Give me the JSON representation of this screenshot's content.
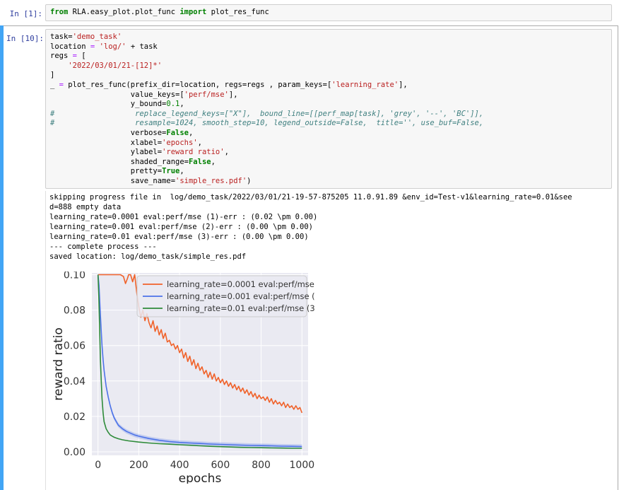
{
  "cell1": {
    "prompt": "In [1]:",
    "code": {
      "kw_from": "from",
      "module": " RLA.easy_plot.plot_func ",
      "kw_import": "import",
      "name": " plot_res_func"
    }
  },
  "cell2": {
    "prompt": "In [10]:",
    "lines": {
      "l1a": "task=",
      "l1b": "'demo_task'",
      "l2a": "location ",
      "l2b": "=",
      "l2c": "'log/'",
      "l2d": " + task",
      "l3a": "regs ",
      "l3b": "=",
      "l3c": " [",
      "l4": "'2022/03/01/21-[12]*'",
      "l5": "]",
      "l6a": "_ ",
      "l6b": "=",
      "l6c": " plot_res_func(prefix_dir=location, regs=regs , param_keys=[",
      "l6d": "'learning_rate'",
      "l6e": "],",
      "l7a": "value_keys=[",
      "l7b": "'perf/mse'",
      "l7c": "],",
      "l8a": "y_bound=",
      "l8b": "0.1",
      "l8c": ",",
      "l9": "#                  replace_legend_keys=[\"X\"],  bound_line=[[perf_map[task], 'grey', '--', 'BC']],",
      "l10": "#                  resample=1024, smooth_step=10, legend_outside=False,  title='', use_buf=False,",
      "l11a": "verbose=",
      "l11b": "False",
      "l11c": ",",
      "l12a": "xlabel=",
      "l12b": "'epochs'",
      "l12c": ",",
      "l13a": "ylabel=",
      "l13b": "'reward ratio'",
      "l13c": ",",
      "l14a": "shaded_range=",
      "l14b": "False",
      "l14c": ",",
      "l15a": "pretty=",
      "l15b": "True",
      "l15c": ",",
      "l16a": "save_name=",
      "l16b": "'simple_res.pdf'",
      "l16c": ")"
    },
    "output": [
      "skipping progress file in  log/demo_task/2022/03/01/21-19-57-875205 11.0.91.89 &env_id=Test-v1&learning_rate=0.01&see",
      "d=888 empty data",
      "learning_rate=0.0001 eval:perf/mse (1)-err : (0.02 \\pm 0.00)",
      "learning_rate=0.001 eval:perf/mse (2)-err : (0.00 \\pm 0.00)",
      "learning_rate=0.01 eval:perf/mse (3)-err : (0.00 \\pm 0.00)",
      "--- complete process ---",
      "saved location: log/demo_task/simple_res.pdf"
    ]
  },
  "chart_data": {
    "type": "line",
    "xlabel": "epochs",
    "ylabel": "reward ratio",
    "xlim": [
      -30,
      1030
    ],
    "ylim": [
      -0.002,
      0.101
    ],
    "xticks": [
      0,
      200,
      400,
      600,
      800,
      1000
    ],
    "xtick_labels": [
      "0",
      "200",
      "400",
      "600",
      "800",
      "1000"
    ],
    "yticks": [
      0.0,
      0.02,
      0.04,
      0.06,
      0.08,
      0.1
    ],
    "ytick_labels": [
      "0.00",
      "0.02",
      "0.04",
      "0.06",
      "0.08",
      "0.10"
    ],
    "grid": true,
    "legend_position": "top-right",
    "background": "#eaeaf2",
    "series": [
      {
        "name": "learning_rate=0.0001 eval:perf/mse (1)",
        "color": "#f0622a",
        "x": [
          0,
          40,
          80,
          110,
          125,
          135,
          145,
          150,
          160,
          170,
          180,
          190,
          200,
          210,
          220,
          230,
          240,
          250,
          260,
          270,
          280,
          290,
          300,
          310,
          320,
          330,
          340,
          350,
          360,
          370,
          380,
          390,
          400,
          410,
          420,
          430,
          440,
          450,
          460,
          470,
          480,
          490,
          500,
          510,
          520,
          530,
          540,
          550,
          560,
          570,
          580,
          590,
          600,
          610,
          620,
          630,
          640,
          650,
          660,
          670,
          680,
          690,
          700,
          710,
          720,
          730,
          740,
          750,
          760,
          770,
          780,
          790,
          800,
          810,
          820,
          830,
          840,
          850,
          860,
          870,
          880,
          890,
          900,
          910,
          920,
          930,
          940,
          950,
          960,
          970,
          980,
          990,
          1000
        ],
        "y": [
          0.1,
          0.1,
          0.1,
          0.1,
          0.099,
          0.095,
          0.098,
          0.1,
          0.1,
          0.096,
          0.1,
          0.09,
          0.082,
          0.076,
          0.08,
          0.074,
          0.078,
          0.073,
          0.07,
          0.074,
          0.068,
          0.071,
          0.066,
          0.069,
          0.064,
          0.067,
          0.062,
          0.063,
          0.06,
          0.061,
          0.058,
          0.06,
          0.056,
          0.058,
          0.053,
          0.056,
          0.051,
          0.054,
          0.049,
          0.052,
          0.047,
          0.05,
          0.046,
          0.048,
          0.044,
          0.046,
          0.042,
          0.045,
          0.041,
          0.044,
          0.04,
          0.042,
          0.039,
          0.041,
          0.038,
          0.04,
          0.037,
          0.039,
          0.036,
          0.038,
          0.035,
          0.037,
          0.034,
          0.036,
          0.033,
          0.035,
          0.032,
          0.034,
          0.031,
          0.033,
          0.03,
          0.032,
          0.03,
          0.031,
          0.029,
          0.031,
          0.028,
          0.03,
          0.027,
          0.029,
          0.027,
          0.028,
          0.026,
          0.028,
          0.025,
          0.027,
          0.025,
          0.026,
          0.024,
          0.026,
          0.024,
          0.025,
          0.022
        ]
      },
      {
        "name": "learning_rate=0.001 eval:perf/mse (2)",
        "color": "#4c72e8",
        "x": [
          0,
          5,
          10,
          15,
          20,
          25,
          30,
          40,
          50,
          60,
          70,
          80,
          90,
          100,
          120,
          140,
          160,
          180,
          200,
          250,
          300,
          350,
          400,
          450,
          500,
          550,
          600,
          650,
          700,
          750,
          800,
          850,
          900,
          950,
          1000
        ],
        "y": [
          0.1,
          0.094,
          0.082,
          0.07,
          0.06,
          0.052,
          0.046,
          0.037,
          0.031,
          0.026,
          0.022,
          0.019,
          0.017,
          0.015,
          0.013,
          0.0115,
          0.0105,
          0.0095,
          0.0088,
          0.0075,
          0.0065,
          0.0058,
          0.0053,
          0.005,
          0.0047,
          0.0044,
          0.0042,
          0.004,
          0.0038,
          0.0036,
          0.0035,
          0.0034,
          0.0032,
          0.0031,
          0.003
        ]
      },
      {
        "name": "learning_rate=0.01 eval:perf/mse (3)",
        "color": "#2e8b3a",
        "x": [
          0,
          4,
          8,
          12,
          16,
          20,
          25,
          30,
          40,
          50,
          60,
          70,
          80,
          100,
          120,
          150,
          200,
          250,
          300,
          350,
          400,
          450,
          500,
          550,
          600,
          650,
          700,
          750,
          800,
          850,
          900,
          950,
          1000
        ],
        "y": [
          0.1,
          0.088,
          0.07,
          0.052,
          0.04,
          0.03,
          0.022,
          0.017,
          0.013,
          0.011,
          0.0095,
          0.0088,
          0.0082,
          0.0074,
          0.0068,
          0.0062,
          0.0055,
          0.005,
          0.0046,
          0.0043,
          0.004,
          0.0037,
          0.0034,
          0.0031,
          0.0029,
          0.0027,
          0.0025,
          0.0024,
          0.0023,
          0.0022,
          0.0021,
          0.002,
          0.002
        ]
      }
    ]
  }
}
